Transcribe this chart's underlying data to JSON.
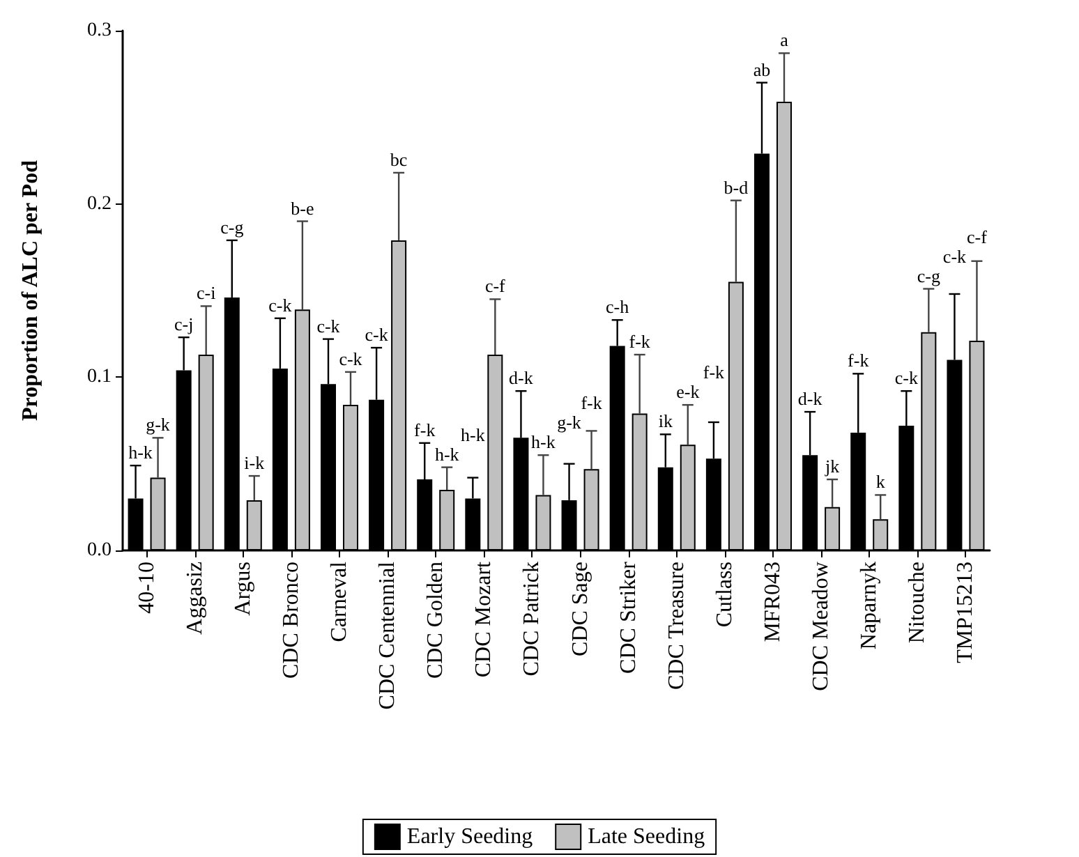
{
  "chart_data": {
    "type": "bar",
    "ylabel": "Proportion of ALC per Pod",
    "categories": [
      "40-10",
      "Aggasiz",
      "Argus",
      "CDC Bronco",
      "Carneval",
      "CDC Centennial",
      "CDC Golden",
      "CDC Mozart",
      "CDC Patrick",
      "CDC Sage",
      "CDC Striker",
      "CDC Treasure",
      "Cutlass",
      "MFR043",
      "CDC Meadow",
      "Naparnyk",
      "Nitouche",
      "TMP15213"
    ],
    "series": [
      {
        "name": "Early Seeding",
        "color": "#000000",
        "values": [
          0.03,
          0.104,
          0.146,
          0.105,
          0.096,
          0.087,
          0.041,
          0.03,
          0.065,
          0.029,
          0.118,
          0.048,
          0.053,
          0.229,
          0.055,
          0.068,
          0.072,
          0.11
        ],
        "errors": [
          [
            0.03,
            0.049
          ],
          [
            0.104,
            0.123
          ],
          [
            0.146,
            0.179
          ],
          [
            0.105,
            0.134
          ],
          [
            0.096,
            0.122
          ],
          [
            0.087,
            0.117
          ],
          [
            0.041,
            0.062
          ],
          [
            0.03,
            0.042
          ],
          [
            0.065,
            0.092
          ],
          [
            0.029,
            0.05
          ],
          [
            0.118,
            0.133
          ],
          [
            0.048,
            0.067
          ],
          [
            0.053,
            0.074
          ],
          [
            0.229,
            0.27
          ],
          [
            0.055,
            0.08
          ],
          [
            0.068,
            0.102
          ],
          [
            0.072,
            0.092
          ],
          [
            0.11,
            0.148
          ]
        ]
      },
      {
        "name": "Late Seeding",
        "color": "#c0c0c0",
        "values": [
          0.042,
          0.113,
          0.029,
          0.139,
          0.084,
          0.179,
          0.035,
          0.113,
          0.032,
          0.047,
          0.079,
          0.061,
          0.155,
          0.259,
          0.025,
          0.018,
          0.126,
          0.121
        ],
        "errors": [
          [
            0.042,
            0.065
          ],
          [
            0.113,
            0.141
          ],
          [
            0.029,
            0.043
          ],
          [
            0.139,
            0.19
          ],
          [
            0.084,
            0.103
          ],
          [
            0.179,
            0.218
          ],
          [
            0.035,
            0.048
          ],
          [
            0.113,
            0.145
          ],
          [
            0.032,
            0.055
          ],
          [
            0.047,
            0.069
          ],
          [
            0.079,
            0.113
          ],
          [
            0.061,
            0.084
          ],
          [
            0.155,
            0.202
          ],
          [
            0.259,
            0.287
          ],
          [
            0.025,
            0.041
          ],
          [
            0.018,
            0.032
          ],
          [
            0.126,
            0.151
          ],
          [
            0.121,
            0.167
          ]
        ]
      }
    ],
    "annotations": [
      {
        "text": "h-k",
        "x": "40-10",
        "y": 0.049
      },
      {
        "text": "g-k",
        "x": "40-10",
        "y": 0.065
      },
      {
        "text": "c-j",
        "x": "Aggasiz",
        "y": 0.123
      },
      {
        "text": "c-i",
        "x": "Aggasiz",
        "y": 0.141
      },
      {
        "text": "c-g",
        "x": "Argus",
        "y": 0.179
      },
      {
        "text": "i-k",
        "x": "Argus",
        "y": 0.043
      },
      {
        "text": "c-k",
        "x": "CDC Bronco",
        "y": 0.134
      },
      {
        "text": "b-e",
        "x": "CDC Bronco",
        "y": 0.19
      },
      {
        "text": "c-k",
        "x": "Carneval",
        "y": 0.122
      },
      {
        "text": "c-k",
        "x": "Carneval",
        "y": 0.103
      },
      {
        "text": "c-k",
        "x": "CDC Centennial",
        "y": 0.117
      },
      {
        "text": "bc",
        "x": "CDC Centennial",
        "y": 0.218
      },
      {
        "text": "f-k",
        "x": "CDC Golden",
        "y": 0.062
      },
      {
        "text": "h-k",
        "x": "CDC Golden",
        "y": 0.048
      },
      {
        "text": "h-k",
        "x": "CDC Mozart",
        "y": 0.042
      },
      {
        "text": "c-f",
        "x": "CDC Mozart",
        "y": 0.145
      },
      {
        "text": "d-k",
        "x": "CDC Patrick",
        "y": 0.092
      },
      {
        "text": "h-k",
        "x": "CDC Patrick",
        "y": 0.055
      },
      {
        "text": "g-k",
        "x": "CDC Sage",
        "y": 0.05
      },
      {
        "text": "f-k",
        "x": "CDC Sage",
        "y": 0.069
      },
      {
        "text": "c-h",
        "x": "CDC Striker",
        "y": 0.133
      },
      {
        "text": "f-k",
        "x": "CDC Striker",
        "y": 0.113
      },
      {
        "text": "ik",
        "x": "CDC Treasure",
        "y": 0.067
      },
      {
        "text": "e-k",
        "x": "CDC Treasure",
        "y": 0.084
      },
      {
        "text": "f-k",
        "x": "Cutlass",
        "y": 0.074
      },
      {
        "text": "b-d",
        "x": "Cutlass",
        "y": 0.202
      },
      {
        "text": "ab",
        "x": "MFR043",
        "y": 0.27
      },
      {
        "text": "a",
        "x": "MFR043",
        "y": 0.287
      },
      {
        "text": "d-k",
        "x": "CDC Meadow",
        "y": 0.08
      },
      {
        "text": "jk",
        "x": "CDC Meadow",
        "y": 0.041
      },
      {
        "text": "f-k",
        "x": "Naparnyk",
        "y": 0.102
      },
      {
        "text": "k",
        "x": "Naparnyk",
        "y": 0.032
      },
      {
        "text": "c-k",
        "x": "Nitouche",
        "y": 0.092
      },
      {
        "text": "c-g",
        "x": "Nitouche",
        "y": 0.151
      },
      {
        "text": "c-k",
        "x": "TMP15213",
        "y": 0.148
      },
      {
        "text": "c-f",
        "x": "TMP15213",
        "y": 0.167
      }
    ],
    "ylim": [
      0,
      0.3
    ],
    "yticks": [
      {
        "value": 0,
        "label": "0.0"
      },
      0.1,
      0.2,
      0.3
    ],
    "grid": false,
    "legend": "bottom"
  }
}
